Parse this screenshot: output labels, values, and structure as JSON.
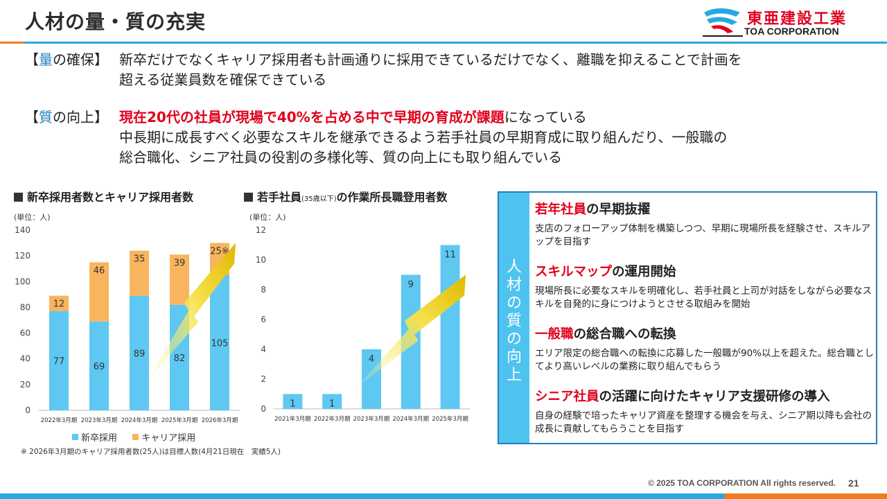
{
  "page": {
    "title": "人材の量・質の充実",
    "logo": {
      "jp": "東亜建設工業",
      "en": "TOA CORPORATION"
    },
    "footer": "© 2025 TOA CORPORATION  All rights reserved.",
    "page_number": "21"
  },
  "paragraphs": {
    "quantity": {
      "tag_open": "【",
      "tag_kw": "量",
      "tag_rest": "の確保】",
      "line1": "新卒だけでなくキャリア採用者も計画通りに採用できているだけでなく、離職を抑えることで計画を",
      "line2": "超える従業員数を確保できている"
    },
    "quality": {
      "tag_open": "【",
      "tag_kw": "質",
      "tag_rest": "の向上】",
      "highlight": "現在20代の社員が現場で40%を占める中で早期の育成が課題",
      "rest1": "になっている",
      "line2": "中長期に成長すべく必要なスキルを継承できるよう若手社員の早期育成に取り組んだり、一般職の",
      "line3": "総合職化、シニア社員の役割の多様化等、質の向上にも取り組んでいる"
    }
  },
  "chart_titles": {
    "left": "新卒採用者数とキャリア採用者数",
    "right_main": "若手社員",
    "right_small": "(35歳以下)",
    "right_rest": "の作業所長職登用者数",
    "unit": "(単位：人)"
  },
  "chart_data": [
    {
      "type": "bar",
      "stacked": true,
      "title": "新卒採用者数とキャリア採用者数",
      "unit": "(単位：人)",
      "categories": [
        "2022年3月期",
        "2023年3月期",
        "2024年3月期",
        "2025年3月期",
        "2026年3月期"
      ],
      "series": [
        {
          "name": "新卒採用",
          "values": [
            77,
            69,
            89,
            82,
            105
          ],
          "color": "#5ec8f2"
        },
        {
          "name": "キャリア採用",
          "values": [
            12,
            46,
            35,
            39,
            25
          ],
          "color": "#f9b55d"
        }
      ],
      "top_labels": [
        "12",
        "46",
        "35",
        "39",
        "25※"
      ],
      "ylim": [
        0,
        140
      ],
      "yticks": [
        0,
        20,
        40,
        60,
        80,
        100,
        120,
        140
      ],
      "legend_position": "bottom",
      "grid": false
    },
    {
      "type": "bar",
      "title": "若手社員(35歳以下)の作業所長職登用者数",
      "unit": "(単位：人)",
      "categories": [
        "2021年3月期",
        "2022年3月期",
        "2023年3月期",
        "2024年3月期",
        "2025年3月期"
      ],
      "series": [
        {
          "values": [
            1,
            1,
            4,
            9,
            11
          ],
          "color": "#5ec8f2"
        }
      ],
      "ylim": [
        0,
        12
      ],
      "yticks": [
        0,
        2,
        4,
        6,
        8,
        10,
        12
      ],
      "grid": false
    }
  ],
  "note": "※ 2026年3月期のキャリア採用者数(25人)は目標人数(4月21日現在　実績5人)",
  "panel": {
    "side_title": "人材の質の向上",
    "items": [
      {
        "title_red": "若年社員",
        "title_rest": "の早期抜擢",
        "desc": "支店のフォローアップ体制を構築しつつ、早期に現場所長を経験させ、スキルアップを目指す"
      },
      {
        "title_red": "スキルマップ",
        "title_rest": "の運用開始",
        "desc": "現場所長に必要なスキルを明確化し、若手社員と上司が対話をしながら必要なスキルを自発的に身につけようとさせる取組みを開始"
      },
      {
        "title_red": "一般職",
        "title_rest": "の総合職への転換",
        "desc": "エリア限定の総合職への転換に応募した一般職が90%以上を超えた。総合職としてより高いレベルの業務に取り組んでもらう"
      },
      {
        "title_red": "シニア社員",
        "title_rest": "の活躍に向けたキャリア支援研修の導入",
        "desc": "自身の経験で培ったキャリア資産を整理する機会を与え、シニア期以降も会社の成長に貢献してもらうことを目指す"
      }
    ]
  },
  "colors": {
    "accent_blue": "#29a8e0",
    "accent_orange": "#f07c1e",
    "highlight_red": "#e0001b",
    "bar_blue": "#5ec8f2",
    "bar_orange": "#f9b55d"
  }
}
